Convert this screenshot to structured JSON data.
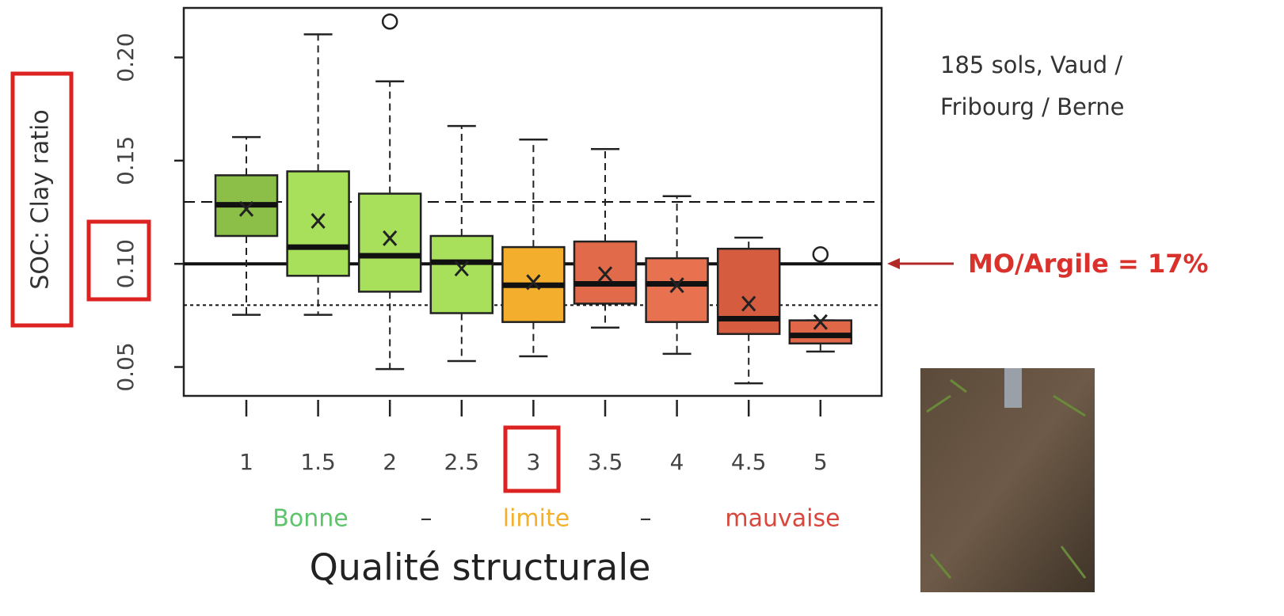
{
  "chart_data": {
    "type": "box",
    "ylabel": "SOC: Clay ratio",
    "xlabel": "Qualité structurale",
    "categories": [
      "1",
      "1.5",
      "2",
      "2.5",
      "3",
      "3.5",
      "4",
      "4.5",
      "5"
    ],
    "colors": [
      "#8cbf47",
      "#a8e05c",
      "#a8e05c",
      "#a8e05c",
      "#f2ae2c",
      "#e06a4a",
      "#e8714f",
      "#d65c40",
      "#e06848"
    ],
    "boxes": [
      {
        "whisker_low": 0.0753,
        "q1": 0.1135,
        "median": 0.1286,
        "q3": 0.1429,
        "whisker_high": 0.1614,
        "mean": 0.1266,
        "outliers": []
      },
      {
        "whisker_low": 0.0753,
        "q1": 0.0942,
        "median": 0.1081,
        "q3": 0.1448,
        "whisker_high": 0.2112,
        "mean": 0.1208,
        "outliers": []
      },
      {
        "whisker_low": 0.049,
        "q1": 0.0865,
        "median": 0.1039,
        "q3": 0.134,
        "whisker_high": 0.1884,
        "mean": 0.1124,
        "outliers": [
          0.2174
        ]
      },
      {
        "whisker_low": 0.0529,
        "q1": 0.0761,
        "median": 0.1008,
        "q3": 0.1135,
        "whisker_high": 0.1668,
        "mean": 0.0977,
        "outliers": []
      },
      {
        "whisker_low": 0.0552,
        "q1": 0.0718,
        "median": 0.0896,
        "q3": 0.1081,
        "whisker_high": 0.1602,
        "mean": 0.0911,
        "outliers": []
      },
      {
        "whisker_low": 0.0691,
        "q1": 0.0807,
        "median": 0.0903,
        "q3": 0.1108,
        "whisker_high": 0.1556,
        "mean": 0.095,
        "outliers": []
      },
      {
        "whisker_low": 0.0564,
        "q1": 0.0718,
        "median": 0.0903,
        "q3": 0.1027,
        "whisker_high": 0.1328,
        "mean": 0.0896,
        "outliers": []
      },
      {
        "whisker_low": 0.0421,
        "q1": 0.066,
        "median": 0.0734,
        "q3": 0.1073,
        "whisker_high": 0.1127,
        "mean": 0.0807,
        "outliers": []
      },
      {
        "whisker_low": 0.0575,
        "q1": 0.0614,
        "median": 0.0653,
        "q3": 0.0726,
        "whisker_high": 0.0726,
        "mean": 0.0718,
        "outliers": [
          0.1046
        ]
      }
    ],
    "ylim": [
      0.036,
      0.224
    ],
    "yticks": [
      0.05,
      {
        "value": 0.1,
        "label": "0.10"
      },
      0.15,
      {
        "value": 0.2,
        "label": "0.20"
      }
    ],
    "reference_lines": [
      {
        "value": 0.13,
        "style": "dashed"
      },
      {
        "value": 0.1,
        "style": "solid"
      },
      {
        "value": 0.08,
        "style": "dotted"
      }
    ],
    "quality_labels": [
      {
        "text": "Bonne",
        "color": "#5cc46a"
      },
      {
        "text": "–",
        "color": "#333333"
      },
      {
        "text": "limite",
        "color": "#f2b02c"
      },
      {
        "text": "–",
        "color": "#333333"
      },
      {
        "text": "mauvaise",
        "color": "#d9463c"
      }
    ],
    "annotation": [
      "185 sols, Vaud /",
      "Fribourg / Berne"
    ],
    "arrow_label": "MO/Argile = 17%"
  }
}
